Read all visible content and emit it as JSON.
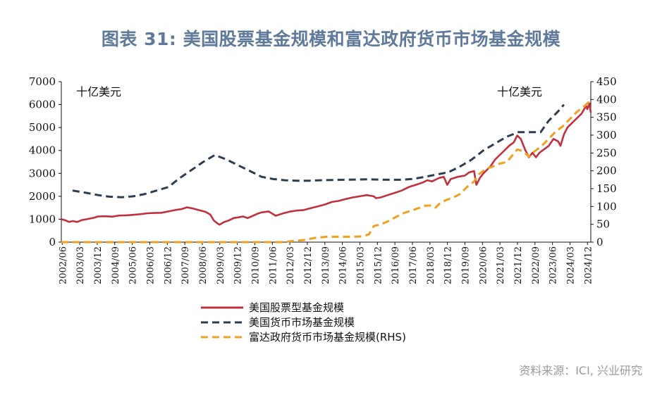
{
  "title": "图表 31: 美国股票基金规模和富达政府货币市场基金规模",
  "source": "资料来源：ICI, 兴业研究",
  "chart_data": {
    "type": "line",
    "left_unit": "十亿美元",
    "right_unit": "十亿美元",
    "ylim_left": [
      0,
      7000
    ],
    "ylim_right": [
      0,
      450
    ],
    "yticks_left": [
      "0",
      "1000",
      "2000",
      "3000",
      "4000",
      "5000",
      "6000",
      "7000"
    ],
    "yticks_right": [
      "0",
      "50",
      "100",
      "150",
      "200",
      "250",
      "300",
      "350",
      "400",
      "450"
    ],
    "x_range": [
      2002.42,
      2025.1
    ],
    "x_ticks": [
      {
        "label": "2002/06",
        "t": 2002.458
      },
      {
        "label": "2003/03",
        "t": 2003.208
      },
      {
        "label": "2003/12",
        "t": 2003.958
      },
      {
        "label": "2004/09",
        "t": 2004.708
      },
      {
        "label": "2005/06",
        "t": 2005.458
      },
      {
        "label": "2006/03",
        "t": 2006.208
      },
      {
        "label": "2006/12",
        "t": 2006.958
      },
      {
        "label": "2007/09",
        "t": 2007.708
      },
      {
        "label": "2008/06",
        "t": 2008.458
      },
      {
        "label": "2009/03",
        "t": 2009.208
      },
      {
        "label": "2009/12",
        "t": 2009.958
      },
      {
        "label": "2010/09",
        "t": 2010.708
      },
      {
        "label": "2011/06",
        "t": 2011.458
      },
      {
        "label": "2012/03",
        "t": 2012.208
      },
      {
        "label": "2012/12",
        "t": 2012.958
      },
      {
        "label": "2013/09",
        "t": 2013.708
      },
      {
        "label": "2014/06",
        "t": 2014.458
      },
      {
        "label": "2015/03",
        "t": 2015.208
      },
      {
        "label": "2015/12",
        "t": 2015.958
      },
      {
        "label": "2016/09",
        "t": 2016.708
      },
      {
        "label": "2017/06",
        "t": 2017.458
      },
      {
        "label": "2018/03",
        "t": 2018.208
      },
      {
        "label": "2018/12",
        "t": 2018.958
      },
      {
        "label": "2019/09",
        "t": 2019.708
      },
      {
        "label": "2020/06",
        "t": 2020.458
      },
      {
        "label": "2021/03",
        "t": 2021.208
      },
      {
        "label": "2021/12",
        "t": 2021.958
      },
      {
        "label": "2022/09",
        "t": 2022.708
      },
      {
        "label": "2023/06",
        "t": 2023.458
      },
      {
        "label": "2024/03",
        "t": 2024.208
      },
      {
        "label": "2024/12",
        "t": 2024.958
      }
    ],
    "series": [
      {
        "name": "美国股票型基金规模",
        "axis": "left",
        "color": "#c0303f",
        "style": "solid",
        "points": [
          [
            2002.42,
            1000
          ],
          [
            2002.6,
            950
          ],
          [
            2002.75,
            880
          ],
          [
            2002.9,
            920
          ],
          [
            2003.1,
            880
          ],
          [
            2003.3,
            960
          ],
          [
            2003.5,
            1000
          ],
          [
            2003.8,
            1060
          ],
          [
            2004.0,
            1120
          ],
          [
            2004.3,
            1130
          ],
          [
            2004.6,
            1110
          ],
          [
            2004.9,
            1160
          ],
          [
            2005.2,
            1170
          ],
          [
            2005.5,
            1190
          ],
          [
            2005.8,
            1220
          ],
          [
            2006.1,
            1260
          ],
          [
            2006.4,
            1270
          ],
          [
            2006.7,
            1280
          ],
          [
            2007.0,
            1340
          ],
          [
            2007.3,
            1400
          ],
          [
            2007.6,
            1450
          ],
          [
            2007.8,
            1520
          ],
          [
            2008.0,
            1480
          ],
          [
            2008.3,
            1400
          ],
          [
            2008.6,
            1320
          ],
          [
            2008.8,
            1200
          ],
          [
            2008.95,
            950
          ],
          [
            2009.1,
            820
          ],
          [
            2009.2,
            760
          ],
          [
            2009.4,
            880
          ],
          [
            2009.6,
            950
          ],
          [
            2009.8,
            1050
          ],
          [
            2010.0,
            1080
          ],
          [
            2010.2,
            1120
          ],
          [
            2010.4,
            1050
          ],
          [
            2010.6,
            1140
          ],
          [
            2010.8,
            1230
          ],
          [
            2011.0,
            1300
          ],
          [
            2011.3,
            1340
          ],
          [
            2011.6,
            1150
          ],
          [
            2011.9,
            1250
          ],
          [
            2012.2,
            1330
          ],
          [
            2012.5,
            1380
          ],
          [
            2012.8,
            1400
          ],
          [
            2013.1,
            1480
          ],
          [
            2013.4,
            1560
          ],
          [
            2013.7,
            1640
          ],
          [
            2014.0,
            1750
          ],
          [
            2014.3,
            1800
          ],
          [
            2014.6,
            1880
          ],
          [
            2014.9,
            1950
          ],
          [
            2015.2,
            2000
          ],
          [
            2015.5,
            2050
          ],
          [
            2015.8,
            2000
          ],
          [
            2015.9,
            1920
          ],
          [
            2016.1,
            1950
          ],
          [
            2016.4,
            2050
          ],
          [
            2016.7,
            2150
          ],
          [
            2017.0,
            2250
          ],
          [
            2017.3,
            2400
          ],
          [
            2017.6,
            2500
          ],
          [
            2017.9,
            2600
          ],
          [
            2018.1,
            2700
          ],
          [
            2018.3,
            2650
          ],
          [
            2018.6,
            2800
          ],
          [
            2018.8,
            2850
          ],
          [
            2018.95,
            2500
          ],
          [
            2019.1,
            2750
          ],
          [
            2019.4,
            2850
          ],
          [
            2019.7,
            2900
          ],
          [
            2019.9,
            3050
          ],
          [
            2020.1,
            3100
          ],
          [
            2020.2,
            2500
          ],
          [
            2020.35,
            2800
          ],
          [
            2020.5,
            3000
          ],
          [
            2020.8,
            3300
          ],
          [
            2021.0,
            3600
          ],
          [
            2021.3,
            3900
          ],
          [
            2021.6,
            4200
          ],
          [
            2021.8,
            4350
          ],
          [
            2021.95,
            4650
          ],
          [
            2022.1,
            4500
          ],
          [
            2022.3,
            4000
          ],
          [
            2022.45,
            3700
          ],
          [
            2022.6,
            3900
          ],
          [
            2022.75,
            3700
          ],
          [
            2022.9,
            3900
          ],
          [
            2023.1,
            4050
          ],
          [
            2023.3,
            4200
          ],
          [
            2023.5,
            4500
          ],
          [
            2023.7,
            4400
          ],
          [
            2023.8,
            4200
          ],
          [
            2023.95,
            4700
          ],
          [
            2024.1,
            5000
          ],
          [
            2024.3,
            5200
          ],
          [
            2024.5,
            5400
          ],
          [
            2024.7,
            5600
          ],
          [
            2024.9,
            5950
          ],
          [
            2024.95,
            5800
          ],
          [
            2025.05,
            6050
          ],
          [
            2025.1,
            5650
          ]
        ]
      },
      {
        "name": "美国货币市场基金规模",
        "axis": "left",
        "color": "#2e3e50",
        "style": "dash",
        "points": [
          [
            2002.9,
            2250
          ],
          [
            2003.5,
            2150
          ],
          [
            2004.0,
            2050
          ],
          [
            2004.5,
            1980
          ],
          [
            2005.0,
            1960
          ],
          [
            2005.5,
            2000
          ],
          [
            2006.0,
            2100
          ],
          [
            2006.5,
            2250
          ],
          [
            2007.0,
            2400
          ],
          [
            2007.5,
            2800
          ],
          [
            2008.0,
            3150
          ],
          [
            2008.5,
            3500
          ],
          [
            2009.0,
            3800
          ],
          [
            2009.5,
            3600
          ],
          [
            2010.0,
            3350
          ],
          [
            2010.5,
            3100
          ],
          [
            2011.0,
            2850
          ],
          [
            2011.5,
            2750
          ],
          [
            2012.0,
            2700
          ],
          [
            2012.5,
            2680
          ],
          [
            2013.0,
            2680
          ],
          [
            2013.5,
            2700
          ],
          [
            2014.0,
            2710
          ],
          [
            2014.5,
            2720
          ],
          [
            2015.0,
            2730
          ],
          [
            2015.5,
            2740
          ],
          [
            2016.0,
            2730
          ],
          [
            2016.5,
            2720
          ],
          [
            2017.0,
            2720
          ],
          [
            2017.5,
            2760
          ],
          [
            2018.0,
            2850
          ],
          [
            2018.5,
            2950
          ],
          [
            2019.0,
            3050
          ],
          [
            2019.5,
            3300
          ],
          [
            2020.0,
            3600
          ],
          [
            2020.5,
            4000
          ],
          [
            2021.0,
            4300
          ],
          [
            2021.5,
            4600
          ],
          [
            2022.0,
            4800
          ],
          [
            2022.5,
            4800
          ],
          [
            2022.95,
            4800
          ],
          [
            2023.3,
            5300
          ],
          [
            2023.7,
            5700
          ],
          [
            2023.95,
            6000
          ]
        ]
      },
      {
        "name": "富达政府货币市场基金规模(RHS)",
        "axis": "right",
        "color": "#f0a020",
        "style": "dash",
        "points": [
          [
            2002.42,
            0
          ],
          [
            2005.0,
            0
          ],
          [
            2008.0,
            0
          ],
          [
            2011.0,
            0
          ],
          [
            2011.9,
            0
          ],
          [
            2012.3,
            3
          ],
          [
            2012.8,
            6
          ],
          [
            2013.3,
            12
          ],
          [
            2013.8,
            15
          ],
          [
            2014.3,
            15
          ],
          [
            2014.8,
            15
          ],
          [
            2015.3,
            16
          ],
          [
            2015.6,
            22
          ],
          [
            2015.8,
            45
          ],
          [
            2016.1,
            50
          ],
          [
            2016.4,
            58
          ],
          [
            2016.8,
            72
          ],
          [
            2017.1,
            82
          ],
          [
            2017.4,
            88
          ],
          [
            2017.7,
            95
          ],
          [
            2018.0,
            102
          ],
          [
            2018.3,
            103
          ],
          [
            2018.45,
            97
          ],
          [
            2018.6,
            107
          ],
          [
            2018.9,
            118
          ],
          [
            2019.2,
            125
          ],
          [
            2019.5,
            135
          ],
          [
            2019.8,
            155
          ],
          [
            2020.1,
            170
          ],
          [
            2020.3,
            190
          ],
          [
            2020.6,
            205
          ],
          [
            2020.9,
            212
          ],
          [
            2021.2,
            220
          ],
          [
            2021.5,
            225
          ],
          [
            2021.7,
            240
          ],
          [
            2021.95,
            260
          ],
          [
            2022.2,
            255
          ],
          [
            2022.45,
            240
          ],
          [
            2022.7,
            255
          ],
          [
            2023.0,
            270
          ],
          [
            2023.3,
            290
          ],
          [
            2023.6,
            310
          ],
          [
            2023.9,
            325
          ],
          [
            2024.2,
            345
          ],
          [
            2024.5,
            365
          ],
          [
            2024.8,
            380
          ],
          [
            2025.0,
            392
          ],
          [
            2025.1,
            385
          ]
        ]
      }
    ]
  }
}
